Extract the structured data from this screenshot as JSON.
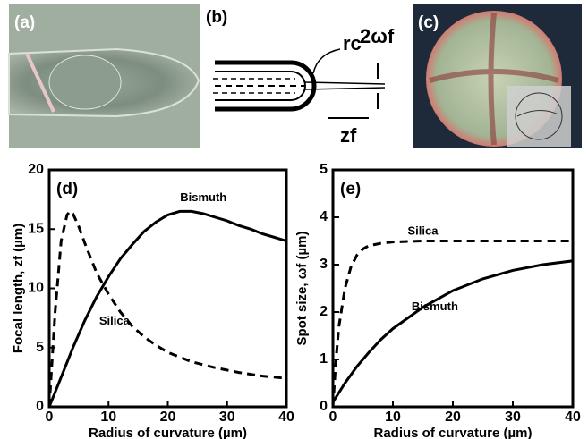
{
  "panels": {
    "a": "(a)",
    "b": "(b)",
    "c": "(c)",
    "b_labels": {
      "radius": "rc",
      "waist": "2ωf",
      "focal": "zf"
    }
  },
  "chart_data": [
    {
      "type": "line",
      "panel_label": "(d)",
      "x_label": "Radius of curvature (µm)",
      "y_label": "Focal length, zf (µm)",
      "xlim": [
        0,
        40
      ],
      "xticks": [
        0,
        10,
        20,
        30,
        40
      ],
      "ylim": [
        0,
        20
      ],
      "yticks": [
        0,
        5,
        10,
        15,
        20
      ],
      "series": [
        {
          "name": "Bismuth",
          "color": "#000000",
          "dash": false,
          "x": [
            0,
            2,
            4,
            6,
            8,
            10,
            12,
            14,
            16,
            18,
            20,
            22,
            24,
            26,
            28,
            30,
            32,
            34,
            36,
            38,
            40
          ],
          "values": [
            0,
            2.5,
            5,
            7.3,
            9.3,
            11,
            12.5,
            13.7,
            14.8,
            15.6,
            16.2,
            16.5,
            16.5,
            16.3,
            16.0,
            15.7,
            15.3,
            15.0,
            14.6,
            14.3,
            14.0
          ]
        },
        {
          "name": "Silica",
          "color": "#000000",
          "dash": true,
          "x": [
            0,
            1,
            2,
            3,
            3.5,
            4,
            5,
            6,
            8,
            10,
            12,
            14,
            16,
            18,
            20,
            24,
            28,
            32,
            36,
            40
          ],
          "values": [
            0,
            8,
            14,
            16.2,
            16.5,
            16.3,
            15.2,
            13.8,
            11.3,
            9.5,
            8.0,
            6.8,
            5.9,
            5.2,
            4.6,
            3.8,
            3.3,
            2.9,
            2.6,
            2.4
          ]
        }
      ]
    },
    {
      "type": "line",
      "panel_label": "(e)",
      "x_label": "Radius of curvature (µm)",
      "y_label": "Spot size, ωf (µm)",
      "xlim": [
        0,
        40
      ],
      "xticks": [
        0,
        10,
        20,
        30,
        40
      ],
      "ylim": [
        0,
        5
      ],
      "yticks": [
        0,
        1,
        2,
        3,
        4,
        5
      ],
      "series": [
        {
          "name": "Silica",
          "color": "#000000",
          "dash": true,
          "x": [
            0,
            0.5,
            1,
            2,
            3,
            4,
            5,
            6,
            8,
            10,
            15,
            20,
            30,
            40
          ],
          "values": [
            0,
            1,
            1.7,
            2.5,
            2.95,
            3.2,
            3.33,
            3.4,
            3.45,
            3.48,
            3.5,
            3.5,
            3.5,
            3.5
          ]
        },
        {
          "name": "Bismuth",
          "color": "#000000",
          "dash": false,
          "x": [
            0,
            2,
            4,
            6,
            8,
            10,
            15,
            20,
            25,
            30,
            35,
            40
          ],
          "values": [
            0.1,
            0.5,
            0.85,
            1.15,
            1.42,
            1.65,
            2.1,
            2.45,
            2.7,
            2.88,
            3.0,
            3.08
          ]
        }
      ]
    }
  ]
}
